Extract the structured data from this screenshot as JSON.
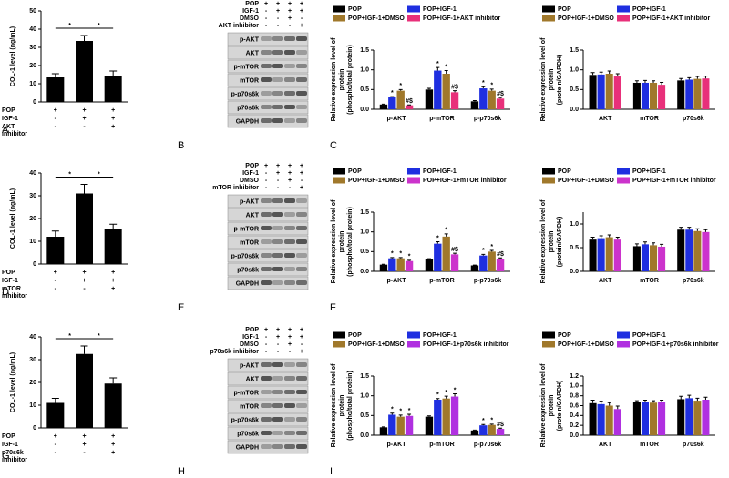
{
  "panel_letters": [
    "A",
    "B",
    "C",
    "D",
    "E",
    "F",
    "G",
    "H",
    "I"
  ],
  "blots": [
    {
      "conditions": [
        {
          "label": "POP",
          "signs": [
            "+",
            "+",
            "+",
            "+"
          ]
        },
        {
          "label": "IGF-1",
          "signs": [
            "-",
            "+",
            "+",
            "+"
          ]
        },
        {
          "label": "DMSO",
          "signs": [
            "-",
            "-",
            "+",
            "-"
          ]
        },
        {
          "label": "AKT inhibitor",
          "signs": [
            "-",
            "-",
            "-",
            "+"
          ]
        }
      ],
      "bands": [
        "p-AKT",
        "AKT",
        "p-mTOR",
        "mTOR",
        "p-p70s6k",
        "p70s6k",
        "GAPDH"
      ]
    },
    {
      "conditions": [
        {
          "label": "POP",
          "signs": [
            "+",
            "+",
            "+",
            "+"
          ]
        },
        {
          "label": "IGF-1",
          "signs": [
            "-",
            "+",
            "+",
            "+"
          ]
        },
        {
          "label": "DMSO",
          "signs": [
            "-",
            "-",
            "+",
            "-"
          ]
        },
        {
          "label": "mTOR inhibitor",
          "signs": [
            "-",
            "-",
            "-",
            "+"
          ]
        }
      ],
      "bands": [
        "p-AKT",
        "AKT",
        "p-mTOR",
        "mTOR",
        "p-p70s6k",
        "p70s6k",
        "GAPDH"
      ]
    },
    {
      "conditions": [
        {
          "label": "POP",
          "signs": [
            "+",
            "+",
            "+",
            "+"
          ]
        },
        {
          "label": "IGF-1",
          "signs": [
            "-",
            "+",
            "+",
            "+"
          ]
        },
        {
          "label": "DMSO",
          "signs": [
            "-",
            "-",
            "+",
            "-"
          ]
        },
        {
          "label": "p70s6k inhibitor",
          "signs": [
            "-",
            "-",
            "-",
            "+"
          ]
        }
      ],
      "bands": [
        "p-AKT",
        "AKT",
        "p-mTOR",
        "mTOR",
        "p-p70s6k",
        "p70s6k",
        "GAPDH"
      ]
    }
  ],
  "chart_data": [
    {
      "type": "bar",
      "ylabel": "COL-1 level (ng/mL)",
      "ylim": [
        0,
        50
      ],
      "yticks": [
        0,
        10,
        20,
        30,
        40,
        50
      ],
      "categories": [
        null,
        null,
        null
      ],
      "values": [
        13.5,
        33.5,
        14.5
      ],
      "errors": [
        2,
        3,
        2.5
      ],
      "color": "#000000",
      "brackets": [
        {
          "from": 0,
          "to": 1,
          "label": "*"
        },
        {
          "from": 1,
          "to": 2,
          "label": "*"
        }
      ],
      "condition_table": [
        {
          "label": [
            "POP"
          ],
          "signs": [
            "+",
            "+",
            "+"
          ]
        },
        {
          "label": [
            "IGF-1"
          ],
          "signs": [
            "-",
            "+",
            "+"
          ]
        },
        {
          "label": [
            "AKT",
            "inhibitor"
          ],
          "signs": [
            "-",
            "-",
            "+"
          ]
        }
      ]
    },
    {
      "type": "grouped_bar",
      "ylabel": [
        "Relative expression level of",
        "protein",
        "(phospho/total protein)"
      ],
      "ylim": [
        0,
        1.5
      ],
      "yticks": [
        {
          "value": 0,
          "label": "0.0"
        },
        0.5,
        {
          "value": 1,
          "label": "1.0"
        },
        1.5
      ],
      "categories": [
        "p-AKT",
        "p-mTOR",
        "p-p70s6k"
      ],
      "series": [
        {
          "name": "POP",
          "color": "#000000",
          "values": [
            0.12,
            0.5,
            0.2
          ],
          "errors": [
            0.01,
            0.03,
            0.02
          ],
          "significance": [
            null,
            null,
            null
          ]
        },
        {
          "name": "POP+IGF-1",
          "color": "#1f2fe0",
          "values": [
            0.3,
            0.98,
            0.53
          ],
          "errors": [
            0.02,
            0.08,
            0.04
          ],
          "significance": [
            "*",
            "*",
            "*"
          ]
        },
        {
          "name": "POP+IGF-1+DMSO",
          "color": "#a0782b",
          "values": [
            0.47,
            0.9,
            0.47
          ],
          "errors": [
            0.03,
            0.08,
            0.04
          ],
          "significance": [
            "*",
            "*",
            "*"
          ]
        },
        {
          "name": "POP+IGF-1+AKT inhibitor",
          "color": "#e8307a",
          "values": [
            0.1,
            0.43,
            0.27
          ],
          "errors": [
            0.01,
            0.04,
            0.03
          ],
          "significance": [
            "#$",
            "#$",
            "#$"
          ]
        }
      ]
    },
    {
      "type": "grouped_bar",
      "ylabel": [
        "Relative expression level of",
        "protein",
        "(protein/GAPDH)"
      ],
      "ylim": [
        0,
        1.5
      ],
      "yticks": [
        {
          "value": 0,
          "label": "0.0"
        },
        0.5,
        {
          "value": 1,
          "label": "1.0"
        },
        1.5
      ],
      "categories": [
        "AKT",
        "mTOR",
        "p70s6k"
      ],
      "series": [
        {
          "name": "POP",
          "color": "#000000",
          "values": [
            0.87,
            0.67,
            0.73
          ],
          "errors": [
            0.06,
            0.05,
            0.05
          ],
          "significance": [
            null,
            null,
            null
          ]
        },
        {
          "name": "POP+IGF-1",
          "color": "#1f2fe0",
          "values": [
            0.88,
            0.67,
            0.75
          ],
          "errors": [
            0.06,
            0.06,
            0.05
          ],
          "significance": [
            null,
            null,
            null
          ]
        },
        {
          "name": "POP+IGF-1+DMSO",
          "color": "#a0782b",
          "values": [
            0.9,
            0.67,
            0.77
          ],
          "errors": [
            0.07,
            0.05,
            0.06
          ],
          "significance": [
            null,
            null,
            null
          ]
        },
        {
          "name": "POP+IGF-1+AKT inhibitor",
          "color": "#e8307a",
          "values": [
            0.83,
            0.62,
            0.78
          ],
          "errors": [
            0.07,
            0.06,
            0.06
          ],
          "significance": [
            null,
            null,
            null
          ]
        }
      ]
    },
    {
      "type": "bar",
      "ylabel": "COL-1 level (ng/mL)",
      "ylim": [
        0,
        40
      ],
      "yticks": [
        0,
        10,
        20,
        30,
        40
      ],
      "categories": [
        null,
        null,
        null
      ],
      "values": [
        12,
        31,
        15.5
      ],
      "errors": [
        2.5,
        4,
        2
      ],
      "color": "#000000",
      "brackets": [
        {
          "from": 0,
          "to": 1,
          "label": "*"
        },
        {
          "from": 1,
          "to": 2,
          "label": "*"
        }
      ],
      "condition_table": [
        {
          "label": [
            "POP"
          ],
          "signs": [
            "+",
            "+",
            "+"
          ]
        },
        {
          "label": [
            "IGF-1"
          ],
          "signs": [
            "-",
            "+",
            "+"
          ]
        },
        {
          "label": [
            "mTOR",
            "inhibitor"
          ],
          "signs": [
            "-",
            "-",
            "+"
          ]
        }
      ]
    },
    {
      "type": "grouped_bar",
      "ylabel": [
        "Relative expression level of",
        "protein",
        "(phospho/total protein)"
      ],
      "ylim": [
        0,
        1.5
      ],
      "yticks": [
        {
          "value": 0,
          "label": "0.0"
        },
        0.5,
        {
          "value": 1,
          "label": "1.0"
        },
        1.5
      ],
      "categories": [
        "p-AKT",
        "p-mTOR",
        "p-p70s6k"
      ],
      "series": [
        {
          "name": "POP",
          "color": "#000000",
          "values": [
            0.17,
            0.3,
            0.15
          ],
          "errors": [
            0.01,
            0.02,
            0.01
          ],
          "significance": [
            null,
            null,
            null
          ]
        },
        {
          "name": "POP+IGF-1",
          "color": "#1f2fe0",
          "values": [
            0.33,
            0.7,
            0.4
          ],
          "errors": [
            0.02,
            0.05,
            0.03
          ],
          "significance": [
            "*",
            "*",
            "*"
          ]
        },
        {
          "name": "POP+IGF-1+DMSO",
          "color": "#a0782b",
          "values": [
            0.33,
            0.88,
            0.5
          ],
          "errors": [
            0.02,
            0.07,
            0.03
          ],
          "significance": [
            "*",
            "*",
            "*"
          ]
        },
        {
          "name": "POP+IGF-1+mTOR inhibitor",
          "color": "#cc33cc",
          "values": [
            0.26,
            0.43,
            0.32
          ],
          "errors": [
            0.02,
            0.03,
            0.02
          ],
          "significance": [
            "*",
            "#$",
            "#$"
          ]
        }
      ]
    },
    {
      "type": "grouped_bar",
      "ylabel": [
        "Relative expression level of",
        "protein",
        "(protein/GAPDH)"
      ],
      "ylim": [
        0,
        1.25
      ],
      "yticks": [
        {
          "value": 0,
          "label": "0.0"
        },
        0.5,
        {
          "value": 1,
          "label": "1.0"
        }
      ],
      "categories": [
        "AKT",
        "mTOR",
        "p70s6k"
      ],
      "series": [
        {
          "name": "POP",
          "color": "#000000",
          "values": [
            0.67,
            0.53,
            0.88
          ],
          "errors": [
            0.05,
            0.05,
            0.05
          ],
          "significance": [
            null,
            null,
            null
          ]
        },
        {
          "name": "POP+IGF-1",
          "color": "#1f2fe0",
          "values": [
            0.7,
            0.57,
            0.88
          ],
          "errors": [
            0.05,
            0.05,
            0.05
          ],
          "significance": [
            null,
            null,
            null
          ]
        },
        {
          "name": "POP+IGF-1+DMSO",
          "color": "#a0782b",
          "values": [
            0.72,
            0.55,
            0.85
          ],
          "errors": [
            0.05,
            0.05,
            0.05
          ],
          "significance": [
            null,
            null,
            null
          ]
        },
        {
          "name": "POP+IGF-1+mTOR inhibitor",
          "color": "#cc33cc",
          "values": [
            0.67,
            0.52,
            0.83
          ],
          "errors": [
            0.05,
            0.05,
            0.05
          ],
          "significance": [
            null,
            null,
            null
          ]
        }
      ]
    },
    {
      "type": "bar",
      "ylabel": "COL-1 level (ng/mL)",
      "ylim": [
        0,
        40
      ],
      "yticks": [
        0,
        10,
        20,
        30,
        40
      ],
      "categories": [
        null,
        null,
        null
      ],
      "values": [
        11,
        32.5,
        19.5
      ],
      "errors": [
        2,
        3.5,
        2.5
      ],
      "color": "#000000",
      "brackets": [
        {
          "from": 0,
          "to": 1,
          "label": "*"
        },
        {
          "from": 1,
          "to": 2,
          "label": "*"
        }
      ],
      "condition_table": [
        {
          "label": [
            "POP"
          ],
          "signs": [
            "+",
            "+",
            "+"
          ]
        },
        {
          "label": [
            "IGF-1"
          ],
          "signs": [
            "-",
            "+",
            "+"
          ]
        },
        {
          "label": [
            "p70s6k",
            "inhibitor"
          ],
          "signs": [
            "-",
            "-",
            "+"
          ]
        }
      ]
    },
    {
      "type": "grouped_bar",
      "ylabel": [
        "Relative expression level of",
        "protein",
        "(phospho/total protein)"
      ],
      "ylim": [
        0,
        1.5
      ],
      "yticks": [
        {
          "value": 0,
          "label": "0.0"
        },
        0.5,
        {
          "value": 1,
          "label": "1.0"
        },
        1.5
      ],
      "categories": [
        "p-AKT",
        "p-mTOR",
        "p-p70s6k"
      ],
      "series": [
        {
          "name": "POP",
          "color": "#000000",
          "values": [
            0.2,
            0.47,
            0.12
          ],
          "errors": [
            0.01,
            0.02,
            0.01
          ],
          "significance": [
            null,
            null,
            null
          ]
        },
        {
          "name": "POP+IGF-1",
          "color": "#1f2fe0",
          "values": [
            0.52,
            0.9,
            0.25
          ],
          "errors": [
            0.04,
            0.03,
            0.02
          ],
          "significance": [
            "*",
            "*",
            "*"
          ]
        },
        {
          "name": "POP+IGF-1+DMSO",
          "color": "#a0782b",
          "values": [
            0.47,
            0.93,
            0.26
          ],
          "errors": [
            0.04,
            0.06,
            0.02
          ],
          "significance": [
            "*",
            "*",
            "*"
          ]
        },
        {
          "name": "POP+IGF-1+p70s6k inhibitor",
          "color": "#b030e0",
          "values": [
            0.49,
            0.98,
            0.16
          ],
          "errors": [
            0.04,
            0.07,
            0.02
          ],
          "significance": [
            "*",
            "*",
            "#$"
          ]
        }
      ]
    },
    {
      "type": "grouped_bar",
      "ylabel": [
        "Relative expression level of",
        "protein",
        "(protein/GAPDH)"
      ],
      "ylim": [
        0,
        1.2
      ],
      "yticks": [
        {
          "value": 0,
          "label": "0.0"
        },
        0.2,
        0.4,
        0.6,
        0.8,
        {
          "value": 1,
          "label": "1.0"
        },
        1.2
      ],
      "categories": [
        "AKT",
        "mTOR",
        "p70s6k"
      ],
      "series": [
        {
          "name": "POP",
          "color": "#000000",
          "values": [
            0.65,
            0.67,
            0.73
          ],
          "errors": [
            0.06,
            0.03,
            0.06
          ],
          "significance": [
            null,
            null,
            null
          ]
        },
        {
          "name": "POP+IGF-1",
          "color": "#1f2fe0",
          "values": [
            0.63,
            0.68,
            0.75
          ],
          "errors": [
            0.06,
            0.03,
            0.06
          ],
          "significance": [
            null,
            null,
            null
          ]
        },
        {
          "name": "POP+IGF-1+DMSO",
          "color": "#a0782b",
          "values": [
            0.6,
            0.66,
            0.7
          ],
          "errors": [
            0.06,
            0.04,
            0.05
          ],
          "significance": [
            null,
            null,
            null
          ]
        },
        {
          "name": "POP+IGF-1+p70s6k inhibitor",
          "color": "#b030e0",
          "values": [
            0.53,
            0.67,
            0.72
          ],
          "errors": [
            0.06,
            0.04,
            0.05
          ],
          "significance": [
            null,
            null,
            null
          ]
        }
      ]
    }
  ]
}
